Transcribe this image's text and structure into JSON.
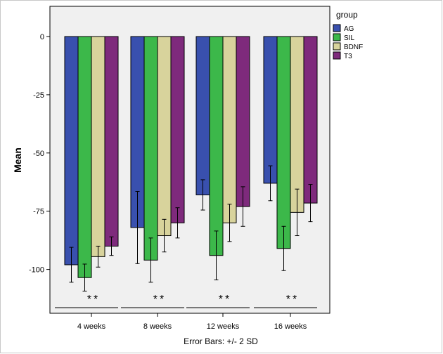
{
  "chart_data": {
    "type": "bar",
    "xlabel": "",
    "ylabel": "Mean",
    "footnote": "Error Bars: +/- 2 SD",
    "legend_title": "group",
    "legend_position": "top-right",
    "ylim": [
      -118,
      6
    ],
    "yticks": [
      0,
      -25,
      -50,
      -75,
      -100
    ],
    "ytick_labels": [
      "0",
      "-25",
      "-50",
      "-75",
      "-100"
    ],
    "categories": [
      "4 weeks",
      "8 weeks",
      "12 weeks",
      "16 weeks"
    ],
    "series": [
      {
        "name": "AG",
        "color": "#3950ae",
        "values": [
          -98,
          -82,
          -68,
          -63
        ],
        "err": [
          7.5,
          15.5,
          6.5,
          7.5
        ]
      },
      {
        "name": "SIL",
        "color": "#3cb84a",
        "values": [
          -103.5,
          -96,
          -94,
          -91
        ],
        "err": [
          5.8,
          9.5,
          10.5,
          9.5
        ]
      },
      {
        "name": "BDNF",
        "color": "#d8d39c",
        "values": [
          -94.5,
          -85.5,
          -80,
          -75.5
        ],
        "err": [
          4.5,
          7,
          8,
          10
        ]
      },
      {
        "name": "T3",
        "color": "#7e2a7c",
        "values": [
          -90,
          -80,
          -73,
          -71.5
        ],
        "err": [
          4,
          6.5,
          8.5,
          8
        ]
      }
    ],
    "annotations": [
      "**",
      "**",
      "**",
      "**"
    ],
    "plot_background": "#f0f0f0",
    "grid": false
  }
}
